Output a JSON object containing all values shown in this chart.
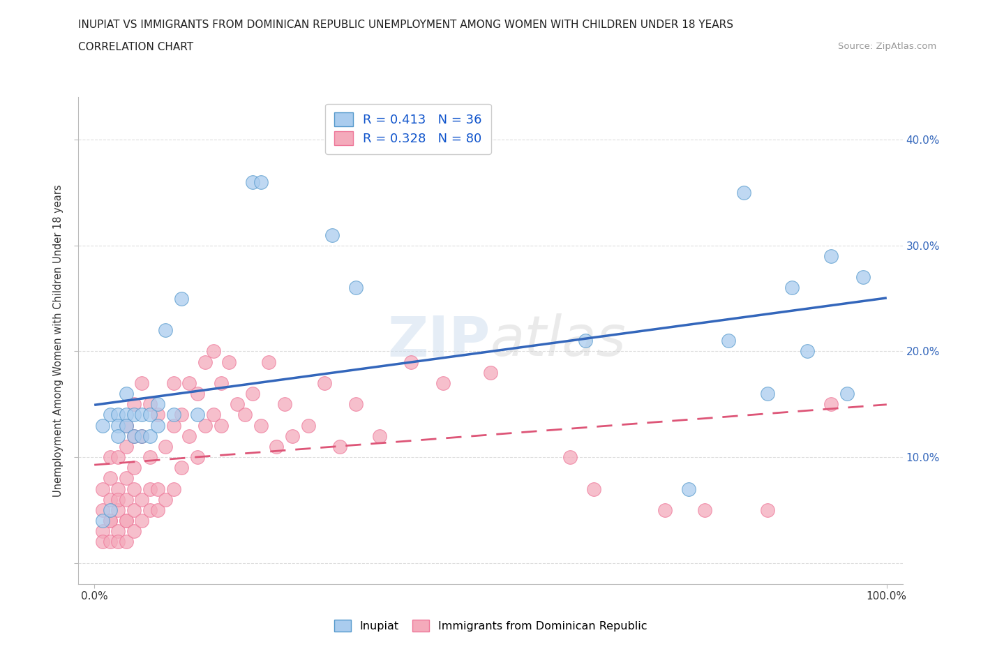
{
  "title_line1": "INUPIAT VS IMMIGRANTS FROM DOMINICAN REPUBLIC UNEMPLOYMENT AMONG WOMEN WITH CHILDREN UNDER 18 YEARS",
  "title_line2": "CORRELATION CHART",
  "source": "Source: ZipAtlas.com",
  "ylabel": "Unemployment Among Women with Children Under 18 years",
  "watermark": "ZIPatlas",
  "xlim": [
    -0.02,
    1.02
  ],
  "ylim": [
    -0.02,
    0.44
  ],
  "x_tick_positions": [
    0.0,
    1.0
  ],
  "x_tick_labels": [
    "0.0%",
    "100.0%"
  ],
  "y_tick_positions": [
    0.0,
    0.1,
    0.2,
    0.3,
    0.4
  ],
  "y_tick_labels_right": [
    "",
    "10.0%",
    "20.0%",
    "30.0%",
    "40.0%"
  ],
  "inupiat_R": 0.413,
  "inupiat_N": 36,
  "dominican_R": 0.328,
  "dominican_N": 80,
  "inupiat_color": "#aaccee",
  "dominican_color": "#f4aabb",
  "inupiat_edge_color": "#5599cc",
  "dominican_edge_color": "#ee7799",
  "inupiat_line_color": "#3366bb",
  "dominican_line_color": "#dd5577",
  "background_color": "#ffffff",
  "grid_color": "#dddddd",
  "legend_label_1": "Inupiat",
  "legend_label_2": "Immigrants from Dominican Republic",
  "inupiat_x": [
    0.01,
    0.01,
    0.02,
    0.02,
    0.03,
    0.03,
    0.03,
    0.04,
    0.04,
    0.04,
    0.05,
    0.05,
    0.06,
    0.06,
    0.07,
    0.07,
    0.08,
    0.08,
    0.09,
    0.1,
    0.11,
    0.13,
    0.2,
    0.21,
    0.3,
    0.33,
    0.62,
    0.75,
    0.8,
    0.82,
    0.85,
    0.88,
    0.9,
    0.93,
    0.95,
    0.97
  ],
  "inupiat_y": [
    0.04,
    0.13,
    0.14,
    0.05,
    0.14,
    0.13,
    0.12,
    0.14,
    0.16,
    0.13,
    0.12,
    0.14,
    0.12,
    0.14,
    0.12,
    0.14,
    0.15,
    0.13,
    0.22,
    0.14,
    0.25,
    0.14,
    0.36,
    0.36,
    0.31,
    0.26,
    0.21,
    0.07,
    0.21,
    0.35,
    0.16,
    0.26,
    0.2,
    0.29,
    0.16,
    0.27
  ],
  "dominican_x": [
    0.01,
    0.01,
    0.01,
    0.01,
    0.02,
    0.02,
    0.02,
    0.02,
    0.02,
    0.02,
    0.03,
    0.03,
    0.03,
    0.03,
    0.03,
    0.03,
    0.04,
    0.04,
    0.04,
    0.04,
    0.04,
    0.04,
    0.04,
    0.05,
    0.05,
    0.05,
    0.05,
    0.05,
    0.05,
    0.06,
    0.06,
    0.06,
    0.06,
    0.07,
    0.07,
    0.07,
    0.07,
    0.08,
    0.08,
    0.08,
    0.09,
    0.09,
    0.1,
    0.1,
    0.1,
    0.11,
    0.11,
    0.12,
    0.12,
    0.13,
    0.13,
    0.14,
    0.14,
    0.15,
    0.15,
    0.16,
    0.16,
    0.17,
    0.18,
    0.19,
    0.2,
    0.21,
    0.22,
    0.23,
    0.24,
    0.25,
    0.27,
    0.29,
    0.31,
    0.33,
    0.36,
    0.4,
    0.44,
    0.5,
    0.6,
    0.63,
    0.72,
    0.77,
    0.85,
    0.93
  ],
  "dominican_y": [
    0.05,
    0.03,
    0.07,
    0.02,
    0.04,
    0.06,
    0.02,
    0.08,
    0.1,
    0.04,
    0.05,
    0.03,
    0.07,
    0.1,
    0.02,
    0.06,
    0.04,
    0.06,
    0.02,
    0.08,
    0.11,
    0.13,
    0.04,
    0.05,
    0.07,
    0.03,
    0.09,
    0.12,
    0.15,
    0.04,
    0.06,
    0.12,
    0.17,
    0.05,
    0.07,
    0.1,
    0.15,
    0.05,
    0.07,
    0.14,
    0.06,
    0.11,
    0.07,
    0.13,
    0.17,
    0.09,
    0.14,
    0.12,
    0.17,
    0.1,
    0.16,
    0.13,
    0.19,
    0.14,
    0.2,
    0.13,
    0.17,
    0.19,
    0.15,
    0.14,
    0.16,
    0.13,
    0.19,
    0.11,
    0.15,
    0.12,
    0.13,
    0.17,
    0.11,
    0.15,
    0.12,
    0.19,
    0.17,
    0.18,
    0.1,
    0.07,
    0.05,
    0.05,
    0.05,
    0.15
  ]
}
